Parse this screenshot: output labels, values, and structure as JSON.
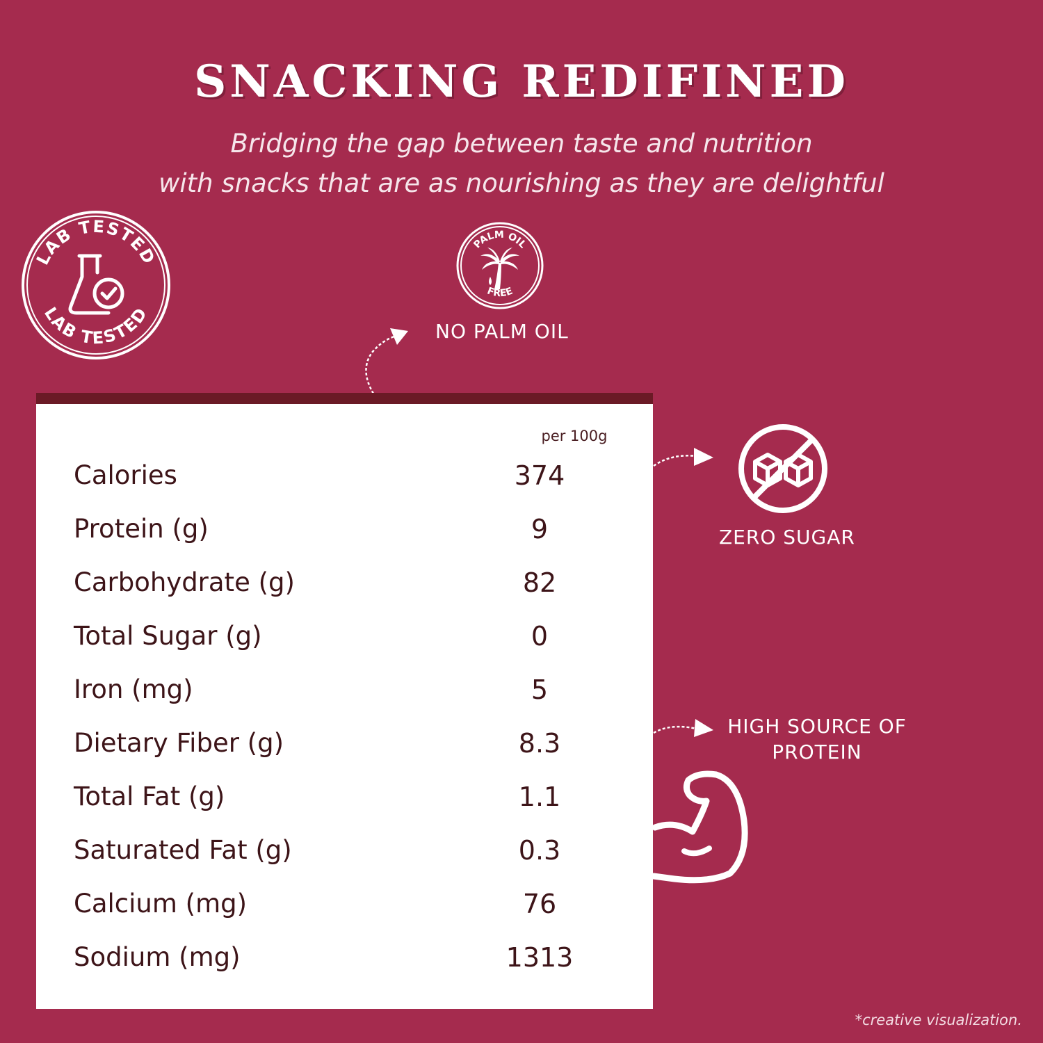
{
  "header": {
    "title": "SNACKING REDIFINED",
    "tagline_line1": "Bridging the gap between taste and nutrition",
    "tagline_line2": "with snacks that are as nourishing as they are delightful"
  },
  "badges": {
    "lab_top": "LAB TESTED",
    "lab_bottom": "LAB TESTED",
    "palm_top": "PALM OIL",
    "palm_bottom": "FREE"
  },
  "features": {
    "palm": "NO PALM OIL",
    "sugar": "ZERO SUGAR",
    "protein_line1": "HIGH SOURCE OF",
    "protein_line2": "PROTEIN"
  },
  "nutrition": {
    "per_label": "per 100g",
    "rows": [
      {
        "name": "Calories",
        "value": "374"
      },
      {
        "name": "Protein (g)",
        "value": "9"
      },
      {
        "name": "Carbohydrate (g)",
        "value": "82"
      },
      {
        "name": "Total Sugar (g)",
        "value": "0"
      },
      {
        "name": "Iron (mg)",
        "value": "5"
      },
      {
        "name": "Dietary Fiber (g)",
        "value": "8.3"
      },
      {
        "name": "Total Fat (g)",
        "value": "1.1"
      },
      {
        "name": "Saturated Fat (g)",
        "value": "0.3"
      },
      {
        "name": "Calcium (mg)",
        "value": "76"
      },
      {
        "name": "Sodium (mg)",
        "value": "1313"
      }
    ]
  },
  "footnote": "*creative visualization.",
  "colors": {
    "background": "#a52b4e",
    "panel_bar": "#6b1a26",
    "panel_text": "#3d1418",
    "white": "#ffffff"
  },
  "icons": {
    "lab": "lab-flask-check-icon",
    "palm": "palm-tree-icon",
    "sugar": "no-sugar-cubes-icon",
    "arm": "flexed-bicep-icon"
  }
}
